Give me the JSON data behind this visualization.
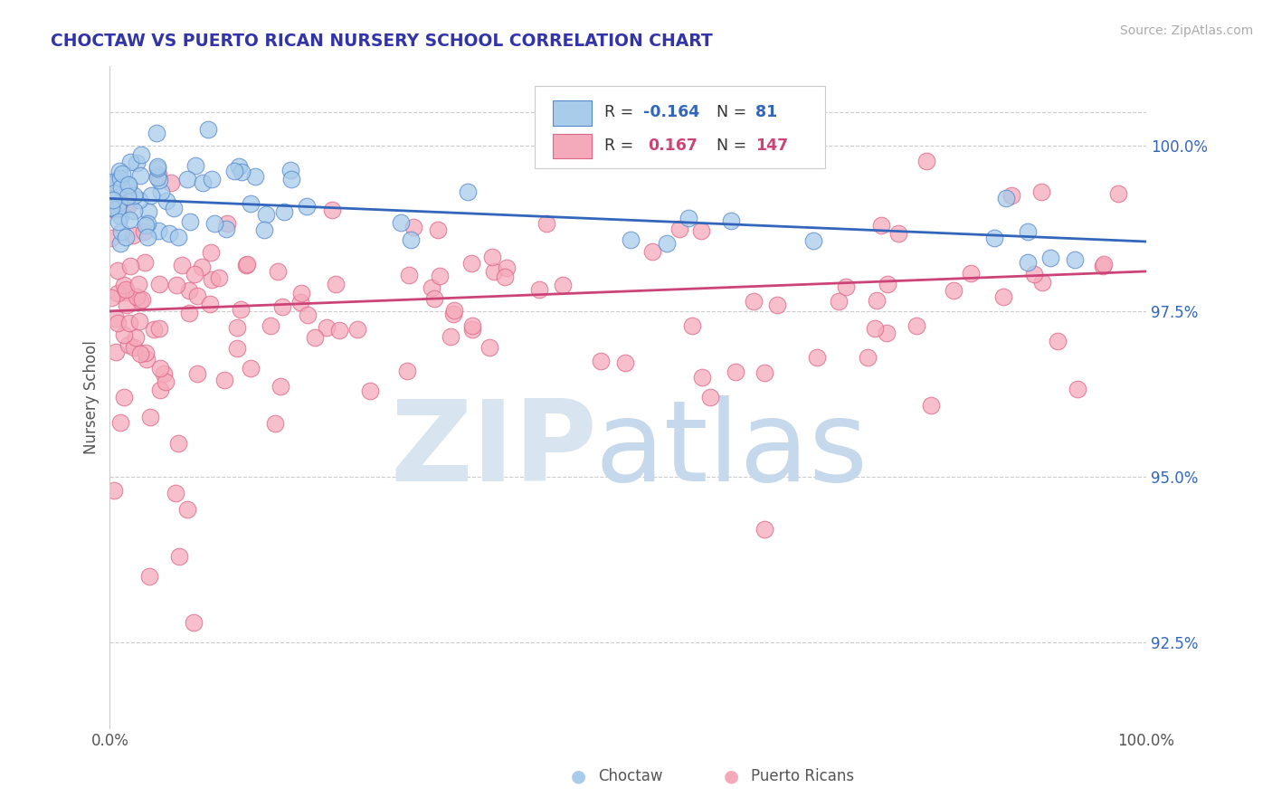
{
  "title": "CHOCTAW VS PUERTO RICAN NURSERY SCHOOL CORRELATION CHART",
  "source": "Source: ZipAtlas.com",
  "ylabel": "Nursery School",
  "xlim": [
    0.0,
    100.0
  ],
  "ylim": [
    91.2,
    101.2
  ],
  "yticks_right": [
    92.5,
    95.0,
    97.5,
    100.0
  ],
  "ytick_top": 100.5,
  "legend_blue_r": "-0.164",
  "legend_blue_n": "81",
  "legend_pink_r": "0.167",
  "legend_pink_n": "147",
  "blue_fill_color": "#A8CCEA",
  "pink_fill_color": "#F5AABB",
  "blue_edge_color": "#5588CC",
  "pink_edge_color": "#DD6688",
  "blue_line_color": "#3366BB",
  "pink_line_color": "#CC4477",
  "watermark_zip_color": "#D8E4F0",
  "watermark_atlas_color": "#C5D8EC",
  "background_color": "#FFFFFF",
  "grid_color": "#CCCCCC",
  "title_color": "#3333AA",
  "source_color": "#AAAAAA",
  "axis_text_color": "#555555",
  "right_axis_color": "#3366BB",
  "legend_box_color": "#EEEEEE",
  "scatter_size": 180,
  "scatter_alpha": 0.75,
  "line_width": 2.0
}
